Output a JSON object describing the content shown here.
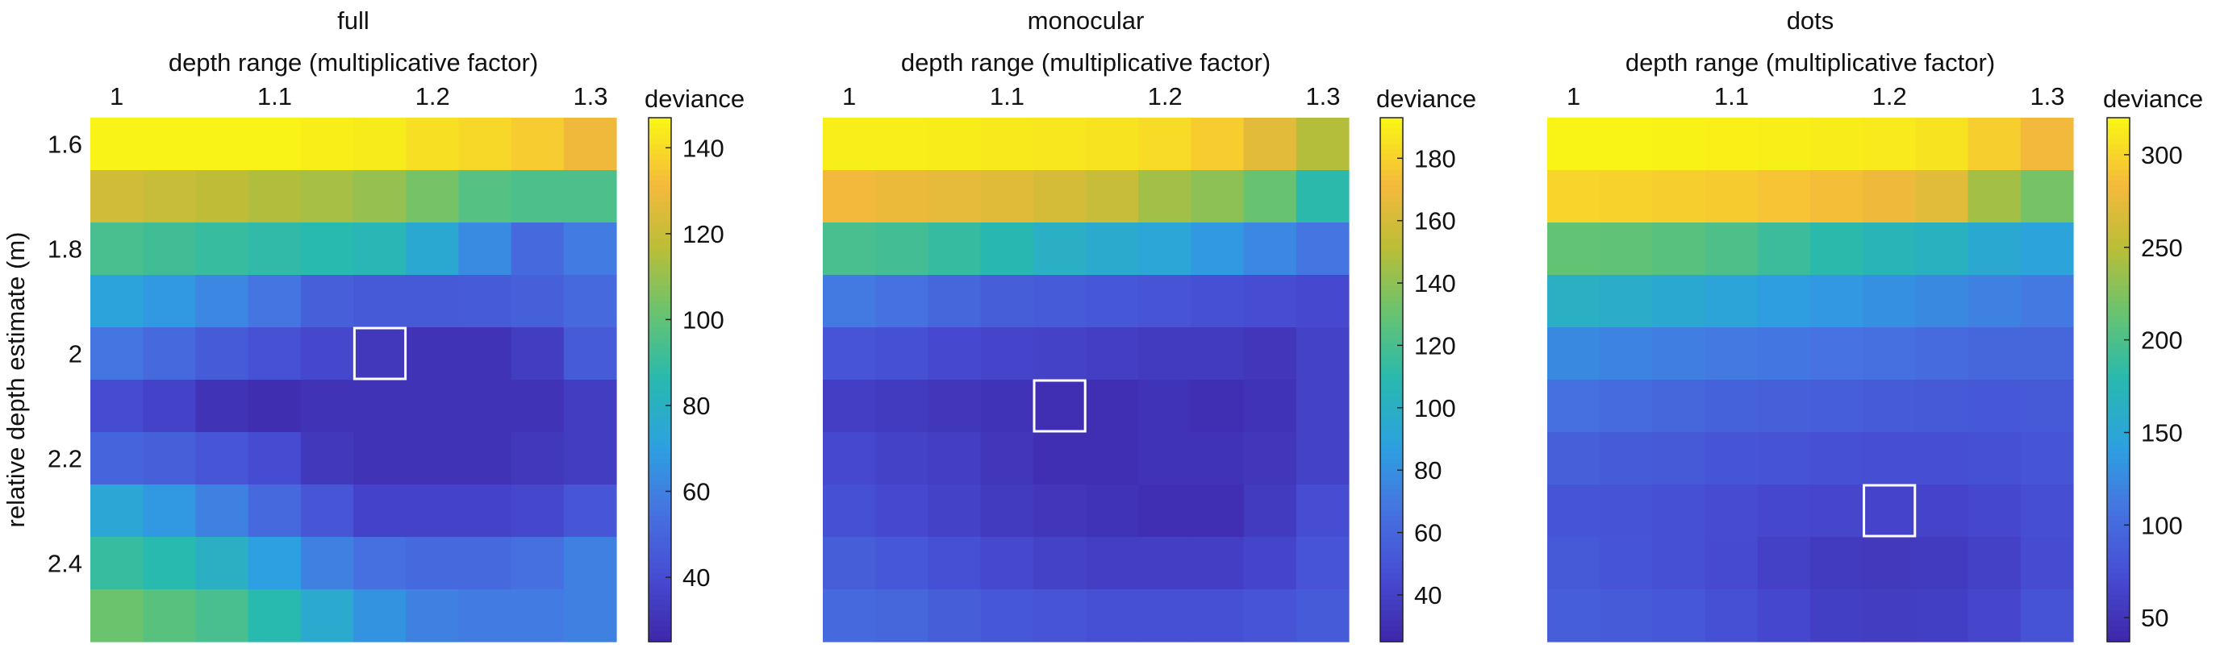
{
  "chart_data": [
    {
      "type": "heatmap",
      "title": "full",
      "xlabel": "depth range (multiplicative factor)",
      "ylabel": "relative depth estimate (m)",
      "x": [
        1.0,
        1.0333,
        1.0667,
        1.1,
        1.1333,
        1.1667,
        1.2,
        1.2333,
        1.2667,
        1.3
      ],
      "y": [
        1.6,
        1.7,
        1.8,
        1.9,
        2.0,
        2.1,
        2.2,
        2.3,
        2.4,
        2.5
      ],
      "xticks": [
        1,
        1.1,
        1.2,
        1.3
      ],
      "xticklabels": [
        "1",
        "1.1",
        "1.2",
        "1.3"
      ],
      "yticks": [
        1.6,
        1.8,
        2.0,
        2.2,
        2.4
      ],
      "yticklabels": [
        "1.6",
        "1.8",
        "2",
        "2.2",
        "2.4"
      ],
      "colorbar": {
        "label": "deviance",
        "clim": [
          25,
          147
        ],
        "ticks": [
          40,
          60,
          80,
          100,
          120,
          140
        ]
      },
      "values": [
        [
          146,
          146,
          146,
          146,
          145,
          144,
          141,
          139,
          136,
          130
        ],
        [
          122,
          120,
          118,
          115,
          113,
          110,
          104,
          97,
          95,
          95
        ],
        [
          94,
          92,
          90,
          88,
          86,
          84,
          75,
          63,
          52,
          58
        ],
        [
          72,
          68,
          62,
          56,
          48,
          45,
          45,
          46,
          48,
          52
        ],
        [
          56,
          52,
          46,
          42,
          38,
          32,
          30,
          30,
          34,
          46
        ],
        [
          40,
          36,
          30,
          28,
          30,
          30,
          30,
          30,
          30,
          34
        ],
        [
          50,
          48,
          44,
          40,
          32,
          30,
          30,
          30,
          32,
          34
        ],
        [
          74,
          68,
          60,
          52,
          44,
          36,
          36,
          36,
          38,
          44
        ],
        [
          90,
          86,
          80,
          70,
          60,
          54,
          52,
          52,
          54,
          60
        ],
        [
          102,
          98,
          94,
          86,
          76,
          66,
          60,
          58,
          58,
          60
        ]
      ],
      "highlight": {
        "x": 1.1667,
        "y": 2.0
      }
    },
    {
      "type": "heatmap",
      "title": "monocular",
      "xlabel": "depth range (multiplicative factor)",
      "ylabel": "",
      "x": [
        1.0,
        1.0333,
        1.0667,
        1.1,
        1.1333,
        1.1667,
        1.2,
        1.2333,
        1.2667,
        1.3
      ],
      "y": [
        1.6,
        1.7,
        1.8,
        1.9,
        2.0,
        2.1,
        2.2,
        2.3,
        2.4,
        2.5
      ],
      "xticks": [
        1,
        1.1,
        1.2,
        1.3
      ],
      "xticklabels": [
        "1",
        "1.1",
        "1.2",
        "1.3"
      ],
      "yticks": [
        1.6,
        1.8,
        2.0,
        2.2,
        2.4
      ],
      "yticklabels": [
        "1.6",
        "1.8",
        "2",
        "2.2",
        "2.4"
      ],
      "colorbar": {
        "label": "deviance",
        "clim": [
          25,
          193
        ],
        "ticks": [
          40,
          60,
          80,
          100,
          120,
          140,
          160,
          180
        ]
      },
      "values": [
        [
          190,
          190,
          189,
          188,
          187,
          186,
          183,
          178,
          165,
          150
        ],
        [
          170,
          168,
          166,
          164,
          160,
          156,
          145,
          140,
          130,
          110
        ],
        [
          120,
          118,
          114,
          108,
          100,
          96,
          92,
          84,
          76,
          68
        ],
        [
          70,
          66,
          60,
          56,
          54,
          52,
          50,
          48,
          46,
          44
        ],
        [
          50,
          48,
          44,
          42,
          40,
          38,
          36,
          36,
          34,
          40
        ],
        [
          38,
          36,
          34,
          32,
          30,
          30,
          32,
          30,
          32,
          40
        ],
        [
          44,
          40,
          38,
          34,
          30,
          30,
          32,
          32,
          34,
          40
        ],
        [
          48,
          44,
          40,
          36,
          34,
          32,
          30,
          30,
          36,
          46
        ],
        [
          56,
          52,
          48,
          44,
          40,
          38,
          38,
          38,
          42,
          50
        ],
        [
          62,
          60,
          56,
          52,
          50,
          48,
          48,
          48,
          50,
          54
        ]
      ],
      "highlight": {
        "x": 1.1333,
        "y": 2.1
      }
    },
    {
      "type": "heatmap",
      "title": "dots",
      "xlabel": "depth range (multiplicative factor)",
      "ylabel": "",
      "x": [
        1.0,
        1.0333,
        1.0667,
        1.1,
        1.1333,
        1.1667,
        1.2,
        1.2333,
        1.2667,
        1.3
      ],
      "y": [
        1.6,
        1.7,
        1.8,
        1.9,
        2.0,
        2.1,
        2.2,
        2.3,
        2.4,
        2.5
      ],
      "xticks": [
        1,
        1.1,
        1.2,
        1.3
      ],
      "xticklabels": [
        "1",
        "1.1",
        "1.2",
        "1.3"
      ],
      "yticks": [
        1.6,
        1.8,
        2.0,
        2.2,
        2.4
      ],
      "yticklabels": [
        "1.6",
        "1.8",
        "2",
        "2.2",
        "2.4"
      ],
      "colorbar": {
        "label": "deviance",
        "clim": [
          37,
          320
        ],
        "ticks": [
          50,
          100,
          150,
          200,
          250,
          300
        ]
      },
      "values": [
        [
          318,
          318,
          317,
          316,
          315,
          314,
          312,
          308,
          296,
          282
        ],
        [
          300,
          298,
          296,
          294,
          290,
          286,
          280,
          272,
          240,
          220
        ],
        [
          212,
          210,
          206,
          200,
          190,
          180,
          172,
          166,
          154,
          146
        ],
        [
          164,
          160,
          154,
          148,
          140,
          136,
          130,
          124,
          118,
          112
        ],
        [
          124,
          120,
          116,
          112,
          110,
          108,
          104,
          100,
          96,
          96
        ],
        [
          104,
          100,
          96,
          92,
          90,
          88,
          86,
          84,
          82,
          84
        ],
        [
          90,
          86,
          84,
          80,
          78,
          76,
          74,
          74,
          76,
          80
        ],
        [
          80,
          78,
          76,
          72,
          68,
          66,
          64,
          64,
          68,
          74
        ],
        [
          84,
          80,
          76,
          70,
          62,
          56,
          54,
          56,
          62,
          72
        ],
        [
          88,
          86,
          82,
          76,
          68,
          60,
          58,
          60,
          66,
          78
        ]
      ],
      "highlight": {
        "x": 1.2,
        "y": 2.3
      }
    }
  ]
}
